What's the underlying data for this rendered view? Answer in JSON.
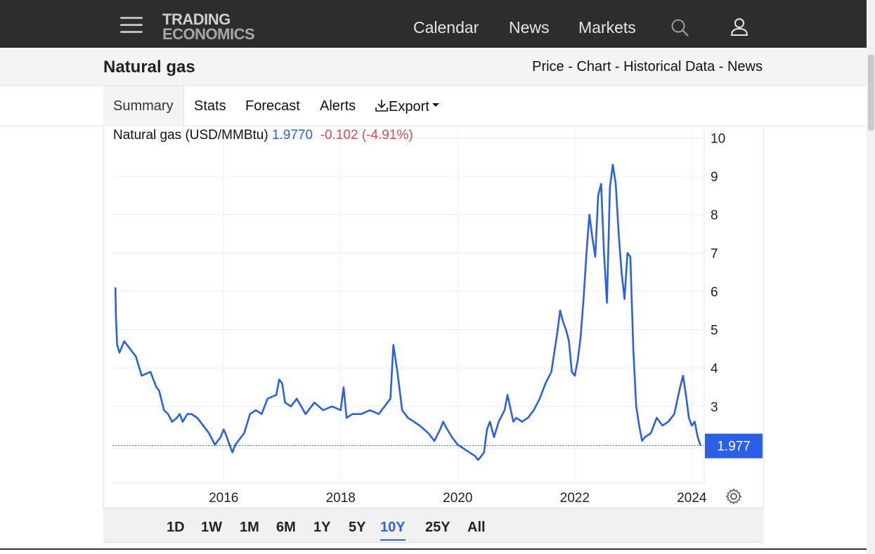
{
  "nav": {
    "logo_line1": "TRADING",
    "logo_line2": "ECONOMICS",
    "links": [
      "Calendar",
      "News",
      "Markets"
    ],
    "search_icon": "search-icon",
    "user_icon": "user-icon",
    "menu_icon": "hamburger-menu-icon"
  },
  "page": {
    "title": "Natural gas",
    "links": [
      "Price",
      "Chart",
      "Historical Data",
      "News"
    ],
    "separator": " - "
  },
  "tabs": {
    "items": [
      "Summary",
      "Stats",
      "Forecast",
      "Alerts"
    ],
    "export_label": "Export",
    "active": "Summary"
  },
  "legend": {
    "name": "Natural gas (USD/MMBtu)",
    "value": "1.9770",
    "change": "-0.102 (-4.91%)"
  },
  "ranges": {
    "items": [
      "1D",
      "1W",
      "1M",
      "6M",
      "1Y",
      "5Y",
      "10Y",
      "25Y",
      "All"
    ],
    "active": "10Y"
  },
  "colors": {
    "line": "#2a5fe6",
    "negative": "#e5484d",
    "label_bg": "#2a5fe6",
    "nav_bg": "#2d2d2d"
  },
  "chart_data": {
    "type": "line",
    "title": "Natural gas (USD/MMBtu)",
    "xlabel": "",
    "ylabel": "",
    "x_ticks": [
      "2016",
      "2018",
      "2020",
      "2022",
      "2024"
    ],
    "y_ticks": [
      3,
      4,
      5,
      6,
      7,
      8,
      9,
      10
    ],
    "xlim": [
      2014.1,
      2024.2
    ],
    "ylim": [
      1.0,
      10.3
    ],
    "last_value_label": "1.977",
    "last_value": 1.977,
    "grid": true,
    "series": [
      {
        "name": "Natural gas",
        "x": [
          2014.15,
          2014.16,
          2014.18,
          2014.22,
          2014.3,
          2014.4,
          2014.5,
          2014.6,
          2014.75,
          2014.85,
          2014.9,
          2014.98,
          2015.05,
          2015.12,
          2015.2,
          2015.25,
          2015.3,
          2015.38,
          2015.45,
          2015.55,
          2015.65,
          2015.75,
          2015.85,
          2015.95,
          2016.0,
          2016.03,
          2016.1,
          2016.15,
          2016.2,
          2016.25,
          2016.35,
          2016.45,
          2016.55,
          2016.65,
          2016.75,
          2016.9,
          2016.95,
          2017.0,
          2017.05,
          2017.15,
          2017.25,
          2017.4,
          2017.55,
          2017.7,
          2017.85,
          2018.0,
          2018.05,
          2018.1,
          2018.2,
          2018.35,
          2018.5,
          2018.65,
          2018.75,
          2018.85,
          2018.9,
          2018.97,
          2019.05,
          2019.15,
          2019.25,
          2019.35,
          2019.5,
          2019.6,
          2019.7,
          2019.75,
          2019.82,
          2019.9,
          2020.0,
          2020.1,
          2020.2,
          2020.3,
          2020.35,
          2020.45,
          2020.5,
          2020.55,
          2020.62,
          2020.7,
          2020.8,
          2020.85,
          2020.95,
          2021.0,
          2021.1,
          2021.2,
          2021.3,
          2021.4,
          2021.5,
          2021.6,
          2021.7,
          2021.75,
          2021.8,
          2021.85,
          2021.9,
          2021.95,
          2022.0,
          2022.05,
          2022.1,
          2022.15,
          2022.2,
          2022.25,
          2022.3,
          2022.35,
          2022.4,
          2022.45,
          2022.5,
          2022.55,
          2022.6,
          2022.65,
          2022.7,
          2022.75,
          2022.8,
          2022.85,
          2022.9,
          2022.95,
          2023.0,
          2023.05,
          2023.1,
          2023.15,
          2023.2,
          2023.3,
          2023.4,
          2023.5,
          2023.6,
          2023.7,
          2023.8,
          2023.85,
          2023.9,
          2023.95,
          2024.0,
          2024.05,
          2024.1,
          2024.15
        ],
        "values": [
          6.1,
          5.3,
          4.6,
          4.4,
          4.7,
          4.5,
          4.3,
          3.8,
          3.9,
          3.5,
          3.4,
          2.9,
          2.8,
          2.6,
          2.7,
          2.8,
          2.6,
          2.8,
          2.8,
          2.7,
          2.5,
          2.3,
          2.0,
          2.2,
          2.4,
          2.3,
          2.0,
          1.8,
          2.0,
          2.1,
          2.3,
          2.8,
          2.9,
          2.8,
          3.2,
          3.3,
          3.7,
          3.6,
          3.1,
          3.0,
          3.2,
          2.8,
          3.1,
          2.9,
          3.0,
          2.9,
          3.5,
          2.7,
          2.8,
          2.8,
          2.9,
          2.8,
          3.0,
          3.2,
          4.6,
          3.9,
          2.9,
          2.7,
          2.6,
          2.5,
          2.3,
          2.1,
          2.4,
          2.6,
          2.4,
          2.2,
          2.0,
          1.9,
          1.8,
          1.7,
          1.6,
          1.8,
          2.4,
          2.6,
          2.2,
          2.6,
          2.9,
          3.3,
          2.6,
          2.7,
          2.6,
          2.7,
          2.9,
          3.2,
          3.6,
          3.9,
          4.9,
          5.5,
          5.2,
          5.0,
          4.7,
          3.9,
          3.8,
          4.2,
          4.8,
          5.8,
          7.0,
          8.0,
          7.4,
          6.9,
          8.5,
          8.8,
          7.0,
          5.7,
          8.7,
          9.3,
          8.8,
          7.5,
          6.5,
          5.8,
          7.0,
          6.9,
          4.5,
          3.0,
          2.5,
          2.1,
          2.2,
          2.3,
          2.7,
          2.5,
          2.6,
          2.8,
          3.5,
          3.8,
          3.3,
          2.7,
          2.5,
          2.6,
          2.2,
          1.977
        ]
      }
    ]
  }
}
